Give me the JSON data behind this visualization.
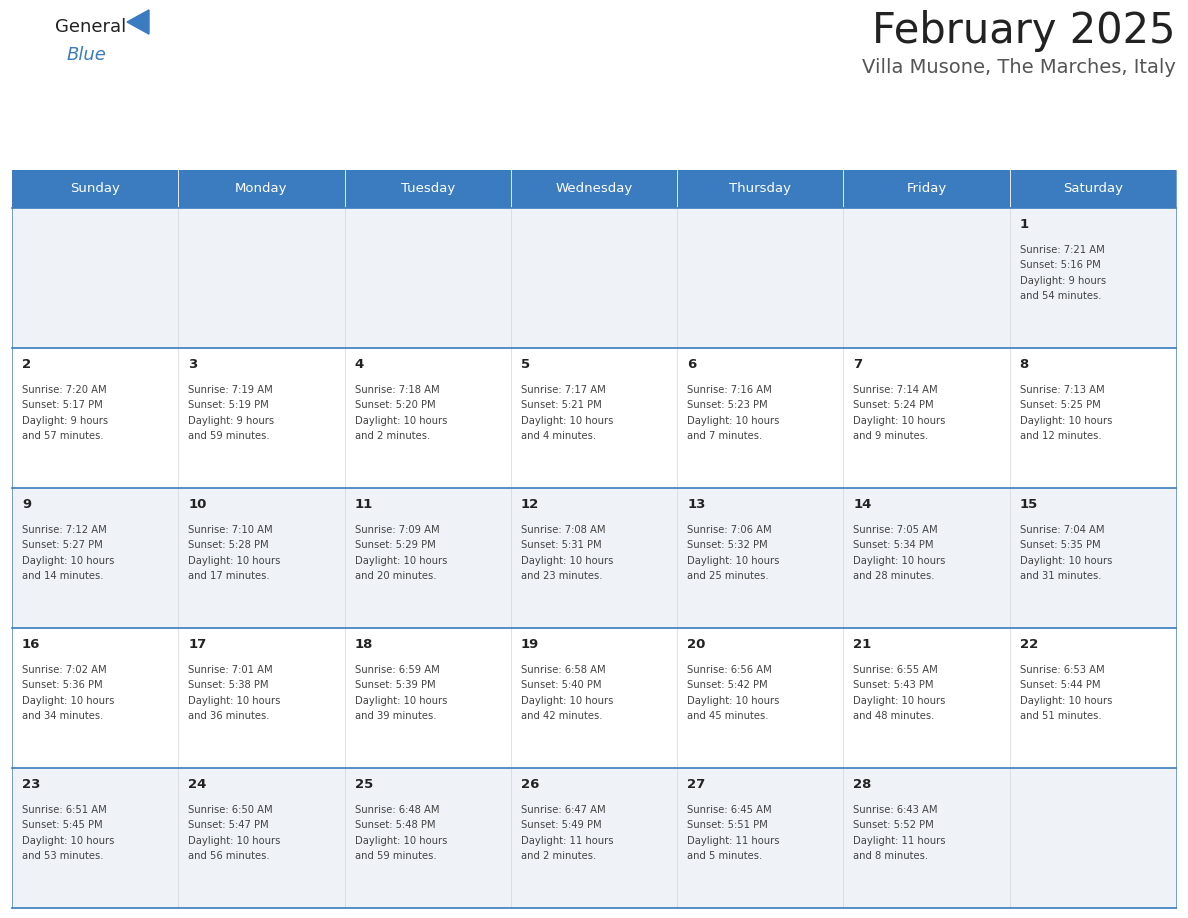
{
  "title": "February 2025",
  "subtitle": "Villa Musone, The Marches, Italy",
  "days_of_week": [
    "Sunday",
    "Monday",
    "Tuesday",
    "Wednesday",
    "Thursday",
    "Friday",
    "Saturday"
  ],
  "header_bg": "#3a7cbf",
  "header_text": "#ffffff",
  "row_bg": [
    "#eff3f8",
    "#ffffff",
    "#eff3f8",
    "#ffffff",
    "#eff3f8"
  ],
  "border_color": "#3a7cbf",
  "day_number_color": "#222222",
  "info_text_color": "#444444",
  "title_color": "#222222",
  "subtitle_color": "#555555",
  "weeks": [
    [
      {
        "day": null,
        "sunrise": null,
        "sunset": null,
        "daylight": null
      },
      {
        "day": null,
        "sunrise": null,
        "sunset": null,
        "daylight": null
      },
      {
        "day": null,
        "sunrise": null,
        "sunset": null,
        "daylight": null
      },
      {
        "day": null,
        "sunrise": null,
        "sunset": null,
        "daylight": null
      },
      {
        "day": null,
        "sunrise": null,
        "sunset": null,
        "daylight": null
      },
      {
        "day": null,
        "sunrise": null,
        "sunset": null,
        "daylight": null
      },
      {
        "day": 1,
        "sunrise": "7:21 AM",
        "sunset": "5:16 PM",
        "daylight": "9 hours\nand 54 minutes."
      }
    ],
    [
      {
        "day": 2,
        "sunrise": "7:20 AM",
        "sunset": "5:17 PM",
        "daylight": "9 hours\nand 57 minutes."
      },
      {
        "day": 3,
        "sunrise": "7:19 AM",
        "sunset": "5:19 PM",
        "daylight": "9 hours\nand 59 minutes."
      },
      {
        "day": 4,
        "sunrise": "7:18 AM",
        "sunset": "5:20 PM",
        "daylight": "10 hours\nand 2 minutes."
      },
      {
        "day": 5,
        "sunrise": "7:17 AM",
        "sunset": "5:21 PM",
        "daylight": "10 hours\nand 4 minutes."
      },
      {
        "day": 6,
        "sunrise": "7:16 AM",
        "sunset": "5:23 PM",
        "daylight": "10 hours\nand 7 minutes."
      },
      {
        "day": 7,
        "sunrise": "7:14 AM",
        "sunset": "5:24 PM",
        "daylight": "10 hours\nand 9 minutes."
      },
      {
        "day": 8,
        "sunrise": "7:13 AM",
        "sunset": "5:25 PM",
        "daylight": "10 hours\nand 12 minutes."
      }
    ],
    [
      {
        "day": 9,
        "sunrise": "7:12 AM",
        "sunset": "5:27 PM",
        "daylight": "10 hours\nand 14 minutes."
      },
      {
        "day": 10,
        "sunrise": "7:10 AM",
        "sunset": "5:28 PM",
        "daylight": "10 hours\nand 17 minutes."
      },
      {
        "day": 11,
        "sunrise": "7:09 AM",
        "sunset": "5:29 PM",
        "daylight": "10 hours\nand 20 minutes."
      },
      {
        "day": 12,
        "sunrise": "7:08 AM",
        "sunset": "5:31 PM",
        "daylight": "10 hours\nand 23 minutes."
      },
      {
        "day": 13,
        "sunrise": "7:06 AM",
        "sunset": "5:32 PM",
        "daylight": "10 hours\nand 25 minutes."
      },
      {
        "day": 14,
        "sunrise": "7:05 AM",
        "sunset": "5:34 PM",
        "daylight": "10 hours\nand 28 minutes."
      },
      {
        "day": 15,
        "sunrise": "7:04 AM",
        "sunset": "5:35 PM",
        "daylight": "10 hours\nand 31 minutes."
      }
    ],
    [
      {
        "day": 16,
        "sunrise": "7:02 AM",
        "sunset": "5:36 PM",
        "daylight": "10 hours\nand 34 minutes."
      },
      {
        "day": 17,
        "sunrise": "7:01 AM",
        "sunset": "5:38 PM",
        "daylight": "10 hours\nand 36 minutes."
      },
      {
        "day": 18,
        "sunrise": "6:59 AM",
        "sunset": "5:39 PM",
        "daylight": "10 hours\nand 39 minutes."
      },
      {
        "day": 19,
        "sunrise": "6:58 AM",
        "sunset": "5:40 PM",
        "daylight": "10 hours\nand 42 minutes."
      },
      {
        "day": 20,
        "sunrise": "6:56 AM",
        "sunset": "5:42 PM",
        "daylight": "10 hours\nand 45 minutes."
      },
      {
        "day": 21,
        "sunrise": "6:55 AM",
        "sunset": "5:43 PM",
        "daylight": "10 hours\nand 48 minutes."
      },
      {
        "day": 22,
        "sunrise": "6:53 AM",
        "sunset": "5:44 PM",
        "daylight": "10 hours\nand 51 minutes."
      }
    ],
    [
      {
        "day": 23,
        "sunrise": "6:51 AM",
        "sunset": "5:45 PM",
        "daylight": "10 hours\nand 53 minutes."
      },
      {
        "day": 24,
        "sunrise": "6:50 AM",
        "sunset": "5:47 PM",
        "daylight": "10 hours\nand 56 minutes."
      },
      {
        "day": 25,
        "sunrise": "6:48 AM",
        "sunset": "5:48 PM",
        "daylight": "10 hours\nand 59 minutes."
      },
      {
        "day": 26,
        "sunrise": "6:47 AM",
        "sunset": "5:49 PM",
        "daylight": "11 hours\nand 2 minutes."
      },
      {
        "day": 27,
        "sunrise": "6:45 AM",
        "sunset": "5:51 PM",
        "daylight": "11 hours\nand 5 minutes."
      },
      {
        "day": 28,
        "sunrise": "6:43 AM",
        "sunset": "5:52 PM",
        "daylight": "11 hours\nand 8 minutes."
      },
      {
        "day": null,
        "sunrise": null,
        "sunset": null,
        "daylight": null
      }
    ]
  ],
  "logo_general_color": "#222222",
  "logo_blue_color": "#3a7cbf",
  "fig_width": 11.88,
  "fig_height": 9.18,
  "dpi": 100
}
